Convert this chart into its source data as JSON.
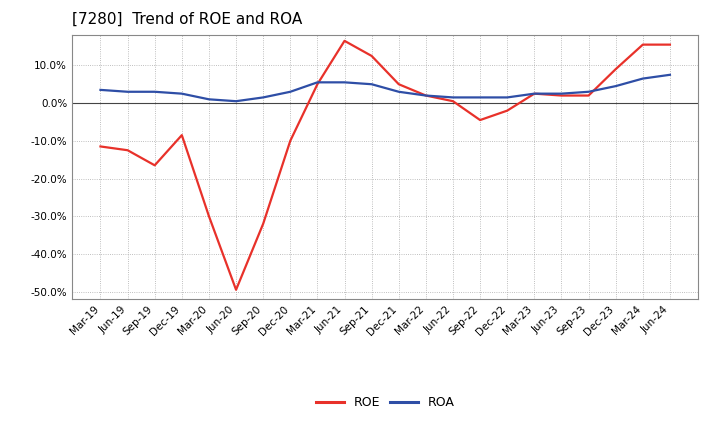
{
  "title": "[7280]  Trend of ROE and ROA",
  "x_labels": [
    "Mar-19",
    "Jun-19",
    "Sep-19",
    "Dec-19",
    "Mar-20",
    "Jun-20",
    "Sep-20",
    "Dec-20",
    "Mar-21",
    "Jun-21",
    "Sep-21",
    "Dec-21",
    "Mar-22",
    "Jun-22",
    "Sep-22",
    "Dec-22",
    "Mar-23",
    "Jun-23",
    "Sep-23",
    "Dec-23",
    "Mar-24",
    "Jun-24"
  ],
  "roe": [
    -11.5,
    -12.5,
    -16.5,
    -8.5,
    -30.0,
    -49.5,
    -32.0,
    -10.0,
    5.0,
    16.5,
    12.5,
    5.0,
    2.0,
    0.5,
    -4.5,
    -2.0,
    2.5,
    2.0,
    2.0,
    9.0,
    15.5,
    15.5
  ],
  "roa": [
    3.5,
    3.0,
    3.0,
    2.5,
    1.0,
    0.5,
    1.5,
    3.0,
    5.5,
    5.5,
    5.0,
    3.0,
    2.0,
    1.5,
    1.5,
    1.5,
    2.5,
    2.5,
    3.0,
    4.5,
    6.5,
    7.5
  ],
  "ylim": [
    -52,
    18
  ],
  "roe_color": "#e8312a",
  "roa_color": "#2e4ea6",
  "bg_color": "#ffffff",
  "plot_bg_color": "#ffffff",
  "grid_color": "#aaaaaa",
  "zero_line_color": "#444444",
  "title_fontsize": 11,
  "tick_fontsize": 7.5,
  "legend_fontsize": 9,
  "yticks": [
    -50,
    -40,
    -30,
    -20,
    -10,
    0,
    10
  ],
  "line_width": 1.6
}
